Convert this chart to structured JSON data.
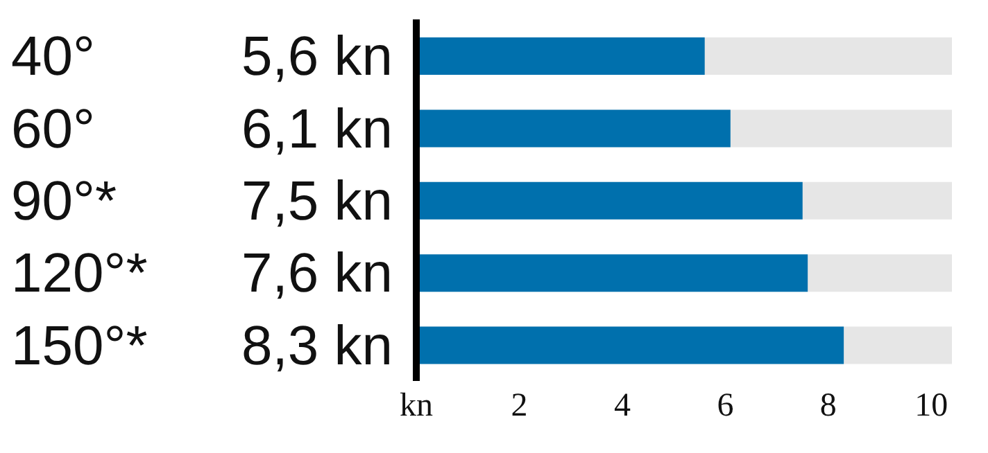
{
  "chart_data": {
    "type": "bar",
    "orientation": "horizontal",
    "categories": [
      "40°",
      "60°",
      "90°*",
      "120°*",
      "150°*"
    ],
    "values": [
      5.6,
      6.1,
      7.5,
      7.6,
      8.3
    ],
    "color": "#0070ad",
    "value_labels": [
      "5,6 kn",
      "6,1 kn",
      "7,5 kn",
      "7,6 kn",
      "8,3 kn"
    ],
    "xlim": [
      0,
      10.4
    ],
    "xticks": [
      {
        "value": 0,
        "label": "kn"
      },
      2,
      4,
      6,
      8,
      10
    ]
  }
}
